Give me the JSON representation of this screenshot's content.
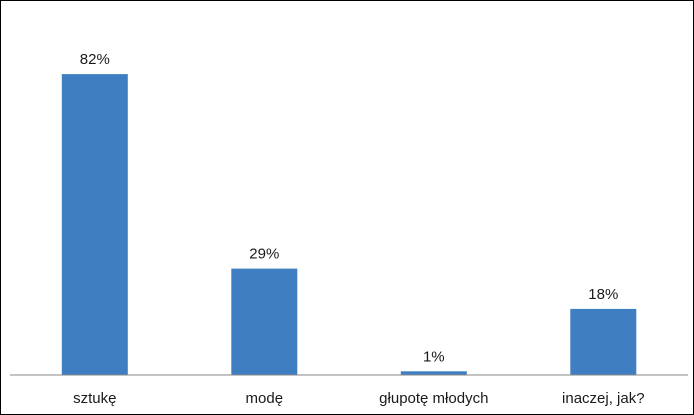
{
  "chart_data": {
    "type": "bar",
    "categories": [
      "sztukę",
      "modę",
      "głupotę młodych",
      "inaczej, jak?"
    ],
    "values": [
      82,
      29,
      1,
      18
    ],
    "data_labels": [
      "82%",
      "29%",
      "1%",
      "18%"
    ],
    "title": "",
    "xlabel": "",
    "ylabel": "",
    "ylim": [
      0,
      100
    ],
    "grid": false,
    "legend": "none",
    "bar_color": "#3f7fc1"
  }
}
